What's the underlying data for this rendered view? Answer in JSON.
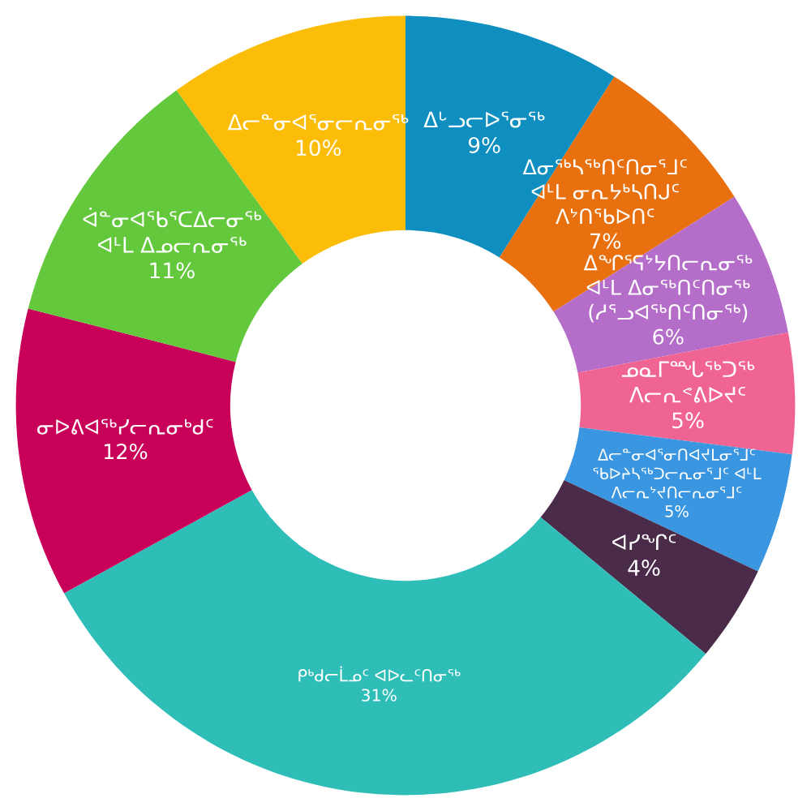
{
  "chart_data": {
    "type": "donut",
    "categories": [
      "ᐃᒡᓗᓕᐅᕐᓂᖅ",
      "ᐃᓂᖅᓴᖅᑎᑦᑎᓂᕐᒧᑦ\nᐊᒻᒪ ᓂᕆᔭᒃᓴᑎᒍᑦ\nᐱᔾᑎᖃᐅᑎᑦ",
      "ᐃᖏᕐᕋᔾᔭᑎᓕᕆᓂᖅ\nᐊᒻᒪ ᐃᓂᖅᑎᑦᑎᓂᖅ\n(ᓱᕐᓗᐊᖅᑎᑦᑎᓂᖅ)",
      "ᓄᓇᒥᙵᖅᑐᖅ\nᐱᓕᕆᕝᕕᐅᔪᑦ",
      "ᐃᓕᓐᓂᐊᕐᓂᑎᐊᔪᒪᓂᕐᒧᑦ\nᖃᐅᔨᓴᖅᑐᓕᕆᓂᕐᒧᑦ ᐊᒻᒪ\nᐱᓕᕆᔾᔪᑎᓕᕆᓂᕐᒧᑦ",
      "ᐊᓯᖏᑦ",
      "ᑭᒃᑯᓕᒫᓄᑦ ᐊᐅᓚᑦᑎᓂᖅ",
      "ᓂᐅᕕᐊᖅᓯᓕᕆᓂᒃᑯᑦ",
      "ᐋᓐᓂᐊᖃᕐᑕᐃᓕᓂᖅ\nᐊᒻᒪ ᐃᓄᓕᕆᓂᖅ",
      "ᐃᓕᓐᓂᐊᕐᓂᓕᕆᓂᖅ"
    ],
    "values": [
      9,
      7,
      6,
      5,
      5,
      4,
      31,
      12,
      11,
      10
    ],
    "value_labels": [
      "9%",
      "7%",
      "6%",
      "5%",
      "5%",
      "4%",
      "31%",
      "12%",
      "11%",
      "10%"
    ],
    "colors": [
      "#0e8fbf",
      "#e8700f",
      "#b46dc8",
      "#f06494",
      "#3a96e0",
      "#4a2b4a",
      "#2fbdb8",
      "#c8005a",
      "#64c83c",
      "#fbbd08"
    ],
    "legend": false
  }
}
